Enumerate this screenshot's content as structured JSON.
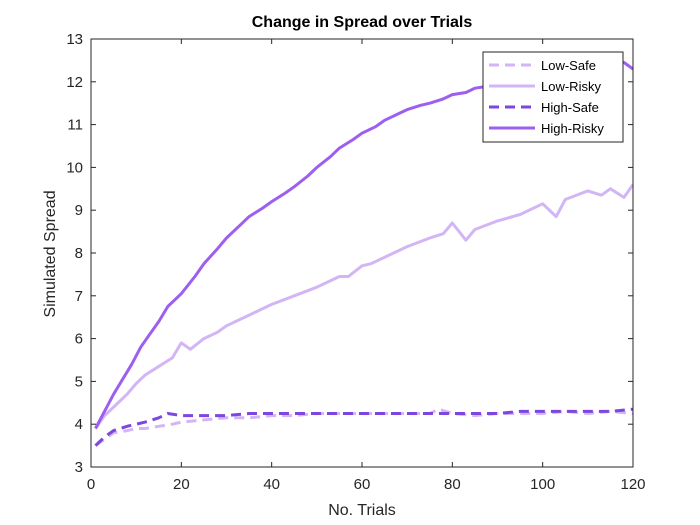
{
  "chart_data": {
    "type": "line",
    "title": "Change in Spread over Trials",
    "xlabel": "No. Trials",
    "ylabel": "Simulated Spread",
    "xlim": [
      0,
      120
    ],
    "ylim": [
      3,
      13
    ],
    "xticks": [
      0,
      20,
      40,
      60,
      80,
      100,
      120
    ],
    "yticks": [
      3,
      4,
      5,
      6,
      7,
      8,
      9,
      10,
      11,
      12,
      13
    ],
    "grid": false,
    "legend_position": "top-right",
    "series": [
      {
        "name": "Low-Safe",
        "color": "#d2b5f5",
        "line_style": "dashed",
        "x": [
          1,
          3,
          5,
          8,
          10,
          12,
          15,
          18,
          20,
          25,
          30,
          35,
          40,
          45,
          50,
          55,
          60,
          65,
          70,
          75,
          77,
          80,
          85,
          90,
          95,
          100,
          105,
          110,
          115,
          120
        ],
        "values": [
          3.5,
          3.65,
          3.8,
          3.85,
          3.9,
          3.9,
          3.95,
          4.0,
          4.05,
          4.1,
          4.15,
          4.15,
          4.2,
          4.2,
          4.25,
          4.25,
          4.25,
          4.25,
          4.25,
          4.25,
          4.35,
          4.25,
          4.2,
          4.25,
          4.25,
          4.25,
          4.3,
          4.25,
          4.3,
          4.25
        ]
      },
      {
        "name": "Low-Risky",
        "color": "#d2b5f5",
        "line_style": "solid",
        "x": [
          1,
          3,
          5,
          8,
          10,
          12,
          15,
          18,
          20,
          22,
          25,
          28,
          30,
          35,
          40,
          45,
          50,
          55,
          57,
          60,
          62,
          65,
          68,
          70,
          75,
          78,
          80,
          83,
          85,
          90,
          95,
          100,
          103,
          105,
          110,
          113,
          115,
          118,
          120
        ],
        "values": [
          3.9,
          4.2,
          4.4,
          4.7,
          4.95,
          5.15,
          5.35,
          5.55,
          5.9,
          5.75,
          6.0,
          6.15,
          6.3,
          6.55,
          6.8,
          7.0,
          7.2,
          7.45,
          7.45,
          7.7,
          7.75,
          7.9,
          8.05,
          8.15,
          8.35,
          8.45,
          8.7,
          8.3,
          8.55,
          8.75,
          8.9,
          9.15,
          8.85,
          9.25,
          9.45,
          9.35,
          9.5,
          9.3,
          9.6
        ]
      },
      {
        "name": "High-Safe",
        "color": "#7e46e0",
        "line_style": "dashed",
        "x": [
          1,
          3,
          5,
          8,
          10,
          12,
          15,
          17,
          20,
          25,
          30,
          35,
          40,
          45,
          50,
          55,
          60,
          65,
          70,
          75,
          80,
          85,
          90,
          95,
          100,
          105,
          110,
          115,
          120
        ],
        "values": [
          3.5,
          3.7,
          3.85,
          3.95,
          4.0,
          4.05,
          4.15,
          4.25,
          4.2,
          4.2,
          4.2,
          4.25,
          4.25,
          4.25,
          4.25,
          4.25,
          4.25,
          4.25,
          4.25,
          4.25,
          4.25,
          4.25,
          4.25,
          4.3,
          4.3,
          4.3,
          4.3,
          4.3,
          4.35
        ]
      },
      {
        "name": "High-Risky",
        "color": "#9c5ff0",
        "line_style": "solid",
        "x": [
          1,
          3,
          5,
          7,
          9,
          11,
          13,
          15,
          17,
          20,
          23,
          25,
          28,
          30,
          33,
          35,
          38,
          40,
          43,
          45,
          48,
          50,
          53,
          55,
          58,
          60,
          63,
          65,
          68,
          70,
          73,
          75,
          78,
          80,
          83,
          85,
          88,
          90,
          93,
          95,
          98,
          100,
          103,
          105,
          108,
          110,
          113,
          115,
          118,
          120
        ],
        "values": [
          3.9,
          4.3,
          4.7,
          5.05,
          5.4,
          5.8,
          6.1,
          6.4,
          6.75,
          7.05,
          7.45,
          7.75,
          8.1,
          8.35,
          8.65,
          8.85,
          9.05,
          9.2,
          9.4,
          9.55,
          9.8,
          10.0,
          10.25,
          10.45,
          10.65,
          10.8,
          10.95,
          11.1,
          11.25,
          11.35,
          11.45,
          11.5,
          11.6,
          11.7,
          11.75,
          11.85,
          11.9,
          11.95,
          12.0,
          12.05,
          12.1,
          12.15,
          12.2,
          12.25,
          12.3,
          12.3,
          12.35,
          12.4,
          12.45,
          12.3
        ]
      }
    ]
  }
}
